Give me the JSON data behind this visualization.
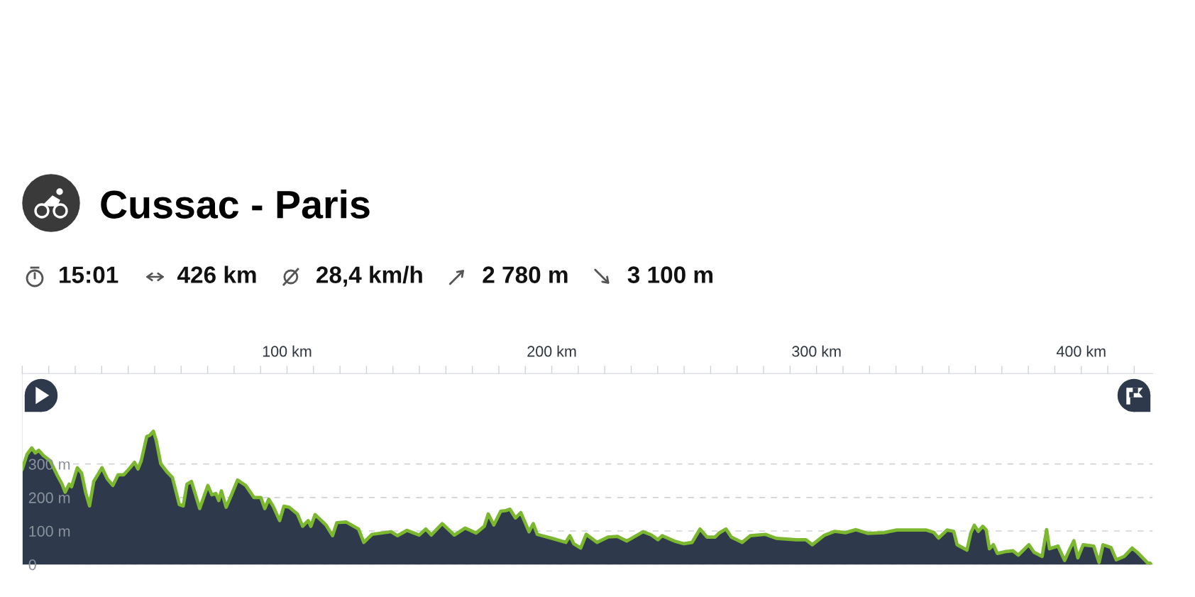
{
  "chart_data": {
    "type": "area",
    "title": "Cussac - Paris",
    "annotations": [
      "15:01",
      "426 km",
      "28,4 km/h",
      "2 780 m",
      "3 100 m"
    ],
    "x": [
      0,
      1.8,
      3.6,
      4.9,
      6.2,
      8.0,
      10.6,
      13.1,
      15.0,
      16.2,
      17.7,
      18.6,
      20.8,
      22.4,
      23.9,
      25.4,
      27.0,
      30.1,
      32.1,
      34.2,
      36.2,
      38.3,
      40.3,
      42.4,
      43.7,
      44.9,
      47.0,
      48.2,
      49.5,
      50.6,
      52.3,
      54.6,
      56.7,
      59.3,
      60.8,
      62.2,
      63.9,
      67.0,
      70.1,
      71.6,
      73.1,
      74.2,
      75.2,
      77.0,
      78.8,
      81.3,
      84.4,
      87.5,
      90.1,
      91.6,
      93.1,
      94.7,
      97.2,
      98.8,
      100.8,
      103.9,
      105.9,
      108.0,
      109.0,
      110.6,
      114.7,
      117.2,
      118.8,
      122.3,
      127.0,
      129.0,
      132.1,
      139.3,
      141.7,
      145.3,
      149.9,
      152.4,
      154.5,
      158.6,
      163.2,
      167.3,
      171.4,
      174.5,
      176.0,
      178.1,
      180.7,
      182.7,
      184.2,
      186.3,
      188.3,
      191.4,
      193.0,
      194.5,
      200.1,
      205.3,
      206.8,
      208.3,
      210.9,
      213.0,
      217.1,
      221.2,
      224.8,
      228.3,
      234.5,
      237.6,
      240.1,
      241.7,
      246.3,
      249.9,
      253.0,
      256.0,
      258.6,
      261.7,
      263.2,
      265.8,
      267.8,
      271.9,
      275.0,
      280.7,
      284.8,
      292.4,
      296.0,
      298.4,
      302.9,
      306.9,
      310.9,
      314.9,
      319.3,
      325.3,
      330.3,
      336.3,
      341.3,
      344.3,
      346.1,
      349.3,
      351.8,
      353.1,
      356.8,
      358.3,
      359.6,
      361.1,
      362.8,
      364.1,
      365.3,
      366.8,
      368.3,
      371.7,
      374.2,
      376.2,
      380.2,
      382.2,
      385.2,
      386.9,
      388.0,
      391.2,
      393.7,
      395.7,
      397.2,
      398.7,
      400.7,
      402.7,
      404.7,
      406.7,
      408.2,
      411.2,
      413.2,
      416.2,
      419.2,
      421.2,
      424.2,
      425.1,
      426.0
    ],
    "series": [
      {
        "color": "#2e3a4c",
        "values": [
          285,
          329,
          348,
          333,
          341,
          325,
          309,
          268,
          240,
          216,
          240,
          232,
          289,
          273,
          216,
          175,
          248,
          289,
          256,
          236,
          268,
          268,
          285,
          305,
          285,
          309,
          382,
          386,
          398,
          370,
          301,
          277,
          260,
          179,
          175,
          240,
          248,
          167,
          236,
          208,
          212,
          191,
          220,
          171,
          204,
          252,
          236,
          200,
          200,
          167,
          195,
          175,
          131,
          174,
          171,
          151,
          114,
          131,
          114,
          149,
          118,
          86,
          125,
          127,
          106,
          66,
          90,
          98,
          86,
          102,
          88,
          106,
          88,
          122,
          88,
          109,
          94,
          114,
          151,
          118,
          159,
          161,
          165,
          139,
          155,
          98,
          122,
          90,
          78,
          66,
          86,
          62,
          49,
          90,
          66,
          82,
          84,
          70,
          98,
          88,
          74,
          86,
          70,
          62,
          66,
          106,
          82,
          82,
          94,
          106,
          82,
          66,
          86,
          90,
          78,
          74,
          74,
          59,
          87,
          99,
          95,
          104,
          93,
          95,
          103,
          103,
          103,
          96,
          79,
          103,
          99,
          59,
          43,
          95,
          117,
          99,
          114,
          103,
          47,
          59,
          33,
          39,
          41,
          28,
          59,
          36,
          24,
          104,
          47,
          55,
          12,
          47,
          71,
          20,
          59,
          57,
          55,
          6,
          59,
          51,
          14,
          24,
          49,
          36,
          12,
          4,
          4
        ]
      }
    ],
    "xlim": [
      0,
      427
    ],
    "xticks": [
      {
        "value": 0,
        "label": null
      },
      {
        "value": 10,
        "label": null
      },
      {
        "value": 20,
        "label": null
      },
      {
        "value": 30,
        "label": null
      },
      {
        "value": 40,
        "label": null
      },
      {
        "value": 50,
        "label": null
      },
      {
        "value": 60,
        "label": null
      },
      {
        "value": 70,
        "label": null
      },
      {
        "value": 80,
        "label": null
      },
      {
        "value": 90,
        "label": null
      },
      {
        "value": 100,
        "label": "100 km"
      },
      {
        "value": 110,
        "label": null
      },
      {
        "value": 120,
        "label": null
      },
      {
        "value": 130,
        "label": null
      },
      {
        "value": 140,
        "label": null
      },
      {
        "value": 150,
        "label": null
      },
      {
        "value": 160,
        "label": null
      },
      {
        "value": 170,
        "label": null
      },
      {
        "value": 180,
        "label": null
      },
      {
        "value": 190,
        "label": null
      },
      {
        "value": 200,
        "label": "200 km"
      },
      {
        "value": 210,
        "label": null
      },
      {
        "value": 220,
        "label": null
      },
      {
        "value": 230,
        "label": null
      },
      {
        "value": 240,
        "label": null
      },
      {
        "value": 250,
        "label": null
      },
      {
        "value": 260,
        "label": null
      },
      {
        "value": 270,
        "label": null
      },
      {
        "value": 280,
        "label": null
      },
      {
        "value": 290,
        "label": null
      },
      {
        "value": 300,
        "label": "300 km"
      },
      {
        "value": 310,
        "label": null
      },
      {
        "value": 320,
        "label": null
      },
      {
        "value": 330,
        "label": null
      },
      {
        "value": 340,
        "label": null
      },
      {
        "value": 350,
        "label": null
      },
      {
        "value": 360,
        "label": null
      },
      {
        "value": 370,
        "label": null
      },
      {
        "value": 380,
        "label": null
      },
      {
        "value": 390,
        "label": null
      },
      {
        "value": 400,
        "label": "400 km"
      },
      {
        "value": 410,
        "label": null
      },
      {
        "value": 420,
        "label": null
      }
    ],
    "ylim": [
      0,
      570
    ],
    "yticks": [
      0,
      {
        "value": 100,
        "label": "100 m"
      },
      {
        "value": 200,
        "label": "200 m"
      },
      {
        "value": 300,
        "label": "300 m"
      }
    ],
    "grid": "y"
  }
}
